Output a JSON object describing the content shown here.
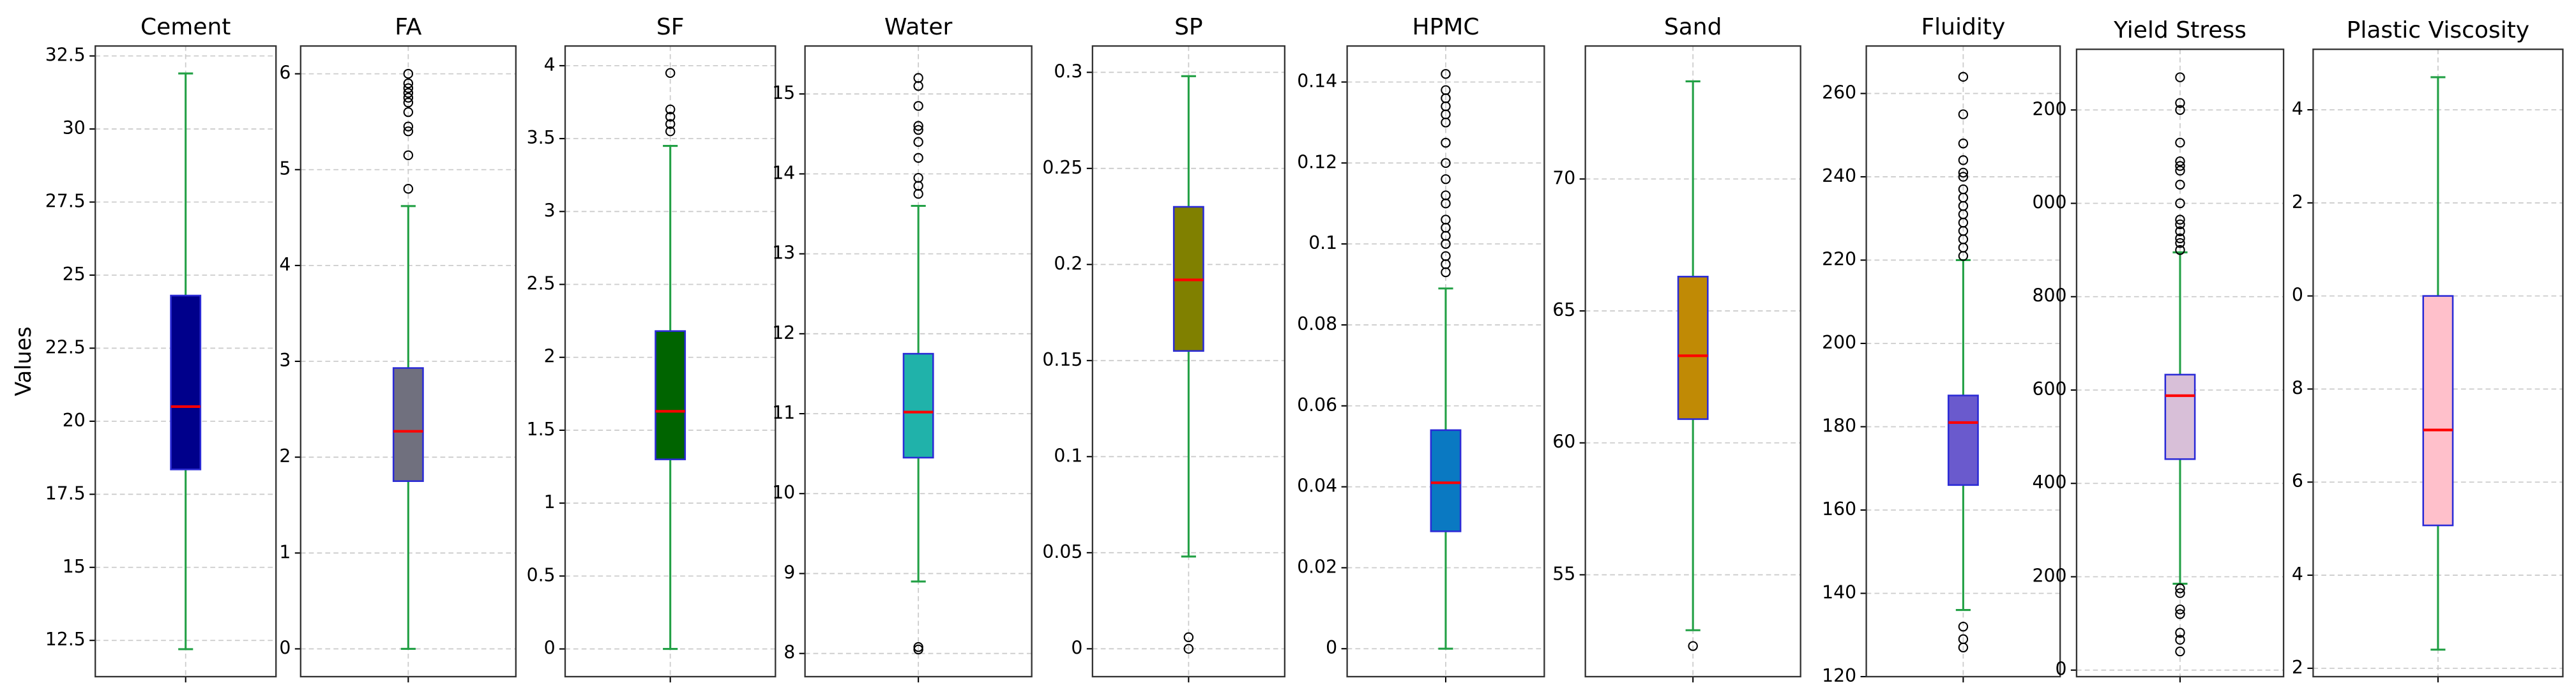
{
  "chart_data": [
    {
      "type": "box",
      "title": "Cement",
      "ylabel": "Values",
      "ylim": [
        11.26,
        32.84
      ],
      "yticks": [
        12.5,
        15.0,
        17.5,
        20.0,
        22.5,
        25.0,
        27.5,
        30.0,
        32.5
      ],
      "grid": true,
      "color": "#00008b",
      "edge_color": "#2b2bd6",
      "whisker_color": "#22a045",
      "median_color": "#ff0000",
      "whisker_low": 12.2,
      "q1": 18.35,
      "median": 20.5,
      "q3": 24.3,
      "whisker_high": 31.9,
      "outliers": []
    },
    {
      "type": "box",
      "title": "FA",
      "ylim": [
        -0.29,
        6.29
      ],
      "yticks": [
        0,
        1,
        2,
        3,
        4,
        5,
        6
      ],
      "grid": true,
      "color": "#70707e",
      "edge_color": "#2b2bd6",
      "whisker_color": "#22a045",
      "median_color": "#ff0000",
      "whisker_low": 0,
      "q1": 1.75,
      "median": 2.27,
      "q3": 2.93,
      "whisker_high": 4.62,
      "outliers": [
        4.8,
        5.15,
        5.4,
        5.45,
        5.6,
        5.7,
        5.75,
        5.8,
        5.85,
        5.9,
        6.0
      ]
    },
    {
      "type": "box",
      "title": "SF",
      "ylim": [
        -0.19,
        4.135
      ],
      "yticks": [
        0.0,
        0.5,
        1.0,
        1.5,
        2.0,
        2.5,
        3.0,
        3.5,
        4.0
      ],
      "grid": true,
      "color": "#006400",
      "edge_color": "#2b2bd6",
      "whisker_color": "#22a045",
      "median_color": "#ff0000",
      "whisker_low": 0,
      "q1": 1.3,
      "median": 1.63,
      "q3": 2.18,
      "whisker_high": 3.45,
      "outliers": [
        3.55,
        3.6,
        3.65,
        3.7,
        3.95
      ]
    },
    {
      "type": "box",
      "title": "Water",
      "ylim": [
        7.71,
        15.6
      ],
      "yticks": [
        8,
        9,
        10,
        11,
        12,
        13,
        14,
        15
      ],
      "grid": true,
      "color": "#20b2aa",
      "edge_color": "#2b2bd6",
      "whisker_color": "#22a045",
      "median_color": "#ff0000",
      "whisker_low": 8.9,
      "q1": 10.45,
      "median": 11.02,
      "q3": 11.75,
      "whisker_high": 13.6,
      "outliers": [
        8.05,
        8.08,
        13.75,
        13.85,
        13.95,
        14.2,
        14.4,
        14.55,
        14.6,
        14.85,
        15.1,
        15.2
      ]
    },
    {
      "type": "box",
      "title": "SP",
      "ylim": [
        -0.0145,
        0.3137
      ],
      "yticks": [
        0.0,
        0.05,
        0.1,
        0.15,
        0.2,
        0.25,
        0.3
      ],
      "grid": true,
      "color": "#808000",
      "edge_color": "#2b2bd6",
      "whisker_color": "#22a045",
      "median_color": "#ff0000",
      "whisker_low": 0.048,
      "q1": 0.155,
      "median": 0.192,
      "q3": 0.23,
      "whisker_high": 0.298,
      "outliers": [
        0,
        0.006
      ]
    },
    {
      "type": "box",
      "title": "HPMC",
      "ylim": [
        -0.0069,
        0.1489
      ],
      "yticks": [
        0.0,
        0.02,
        0.04,
        0.06,
        0.08,
        0.1,
        0.12,
        0.14
      ],
      "grid": true,
      "color": "#0a79c2",
      "edge_color": "#2b2bd6",
      "whisker_color": "#22a045",
      "median_color": "#ff0000",
      "whisker_low": 0,
      "q1": 0.029,
      "median": 0.041,
      "q3": 0.054,
      "whisker_high": 0.089,
      "outliers": [
        0.093,
        0.095,
        0.097,
        0.1,
        0.102,
        0.104,
        0.106,
        0.11,
        0.112,
        0.116,
        0.12,
        0.125,
        0.13,
        0.132,
        0.134,
        0.136,
        0.138,
        0.142
      ]
    },
    {
      "type": "box",
      "title": "Sand",
      "ylim": [
        51.14,
        75.04
      ],
      "yticks": [
        55,
        60,
        65,
        70
      ],
      "grid": true,
      "color": "#c08a05",
      "edge_color": "#2b2bd6",
      "whisker_color": "#22a045",
      "median_color": "#ff0000",
      "whisker_low": 52.9,
      "q1": 60.9,
      "median": 63.3,
      "q3": 66.3,
      "whisker_high": 73.7,
      "outliers": [
        52.3
      ]
    },
    {
      "type": "box",
      "title": "Fluidity",
      "ylim": [
        120,
        271.4
      ],
      "yticks": [
        120,
        140,
        160,
        180,
        200,
        220,
        240,
        260
      ],
      "grid": true,
      "color": "#6a5acd",
      "edge_color": "#2b2bd6",
      "whisker_color": "#22a045",
      "median_color": "#ff0000",
      "whisker_low": 136,
      "q1": 166,
      "median": 181,
      "q3": 187.5,
      "whisker_high": 220,
      "outliers": [
        127,
        129,
        132,
        221,
        223,
        225,
        227,
        229,
        231,
        233,
        235,
        237,
        240,
        241,
        244,
        248,
        255,
        264
      ]
    },
    {
      "type": "box",
      "title": "Yield Stress",
      "ylim": [
        -14,
        1330
      ],
      "yticks": [
        0,
        200,
        400,
        600,
        800,
        {
          "value": 1000,
          "label": "000"
        },
        {
          "value": 1200,
          "label": "200"
        }
      ],
      "grid": true,
      "color": "#d8bfd8",
      "edge_color": "#2b2bd6",
      "whisker_color": "#22a045",
      "median_color": "#ff0000",
      "whisker_low": 185,
      "q1": 452,
      "median": 588,
      "q3": 633,
      "whisker_high": 895,
      "outliers": [
        40,
        65,
        80,
        120,
        130,
        165,
        175,
        900,
        915,
        925,
        940,
        955,
        965,
        1000,
        1040,
        1070,
        1080,
        1090,
        1130,
        1200,
        1215,
        1270
      ]
    },
    {
      "type": "box",
      "title": "Plastic Viscosity",
      "ylim": [
        1.82,
        15.3
      ],
      "yticks": [
        2,
        4,
        6,
        8,
        {
          "value": 10,
          "label": "0"
        },
        {
          "value": 12,
          "label": "2"
        },
        {
          "value": 14,
          "label": "4"
        }
      ],
      "grid": true,
      "color": "#ffc0cb",
      "edge_color": "#2b2bd6",
      "whisker_color": "#22a045",
      "median_color": "#ff0000",
      "whisker_low": 2.4,
      "q1": 5.07,
      "median": 7.12,
      "q3": 10.0,
      "whisker_high": 14.7,
      "outliers": []
    }
  ]
}
